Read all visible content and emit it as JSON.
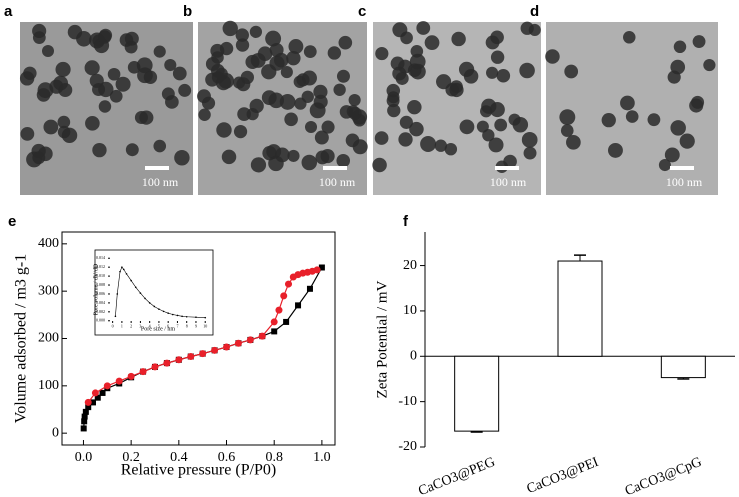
{
  "panels": [
    {
      "label": "a",
      "scale_bar": "100 nm"
    },
    {
      "label": "b",
      "scale_bar": "100 nm"
    },
    {
      "label": "c",
      "scale_bar": "100 nm"
    },
    {
      "label": "d",
      "scale_bar": "100 nm"
    }
  ],
  "chart_data": [
    {
      "type": "line",
      "panel_label": "e",
      "x_label": "Relative pressure (P/P0)",
      "y_label": "Volume adsorbed / m3 g-1",
      "xlim": [
        -0.09,
        1.055
      ],
      "ylim": [
        -25,
        425
      ],
      "xticks": [
        {
          "value": 0,
          "label": "0.0"
        },
        0.2,
        0.4,
        0.6,
        0.8,
        {
          "value": 1,
          "label": "1.0"
        }
      ],
      "yticks": [
        0,
        100,
        200,
        300,
        400
      ],
      "series": [
        {
          "color": "#000000",
          "marker": "square",
          "x": [
            0.001,
            0.003,
            0.005,
            0.01,
            0.02,
            0.04,
            0.06,
            0.08,
            0.1,
            0.15,
            0.2,
            0.25,
            0.3,
            0.35,
            0.4,
            0.45,
            0.5,
            0.55,
            0.6,
            0.65,
            0.7,
            0.75,
            0.8,
            0.85,
            0.9,
            0.95,
            1.0
          ],
          "values": [
            10,
            25,
            35,
            45,
            55,
            65,
            75,
            85,
            95,
            105,
            118,
            130,
            140,
            148,
            155,
            162,
            168,
            175,
            182,
            190,
            197,
            205,
            215,
            235,
            270,
            305,
            350
          ]
        },
        {
          "color": "#e8202a",
          "marker": "circle",
          "x": [
            0.02,
            0.05,
            0.1,
            0.15,
            0.2,
            0.25,
            0.3,
            0.35,
            0.4,
            0.45,
            0.5,
            0.55,
            0.6,
            0.65,
            0.7,
            0.75,
            0.8,
            0.82,
            0.84,
            0.86,
            0.88,
            0.9,
            0.92,
            0.94,
            0.96,
            0.98
          ],
          "values": [
            65,
            85,
            100,
            110,
            120,
            130,
            140,
            148,
            155,
            162,
            168,
            175,
            182,
            190,
            197,
            205,
            235,
            260,
            290,
            315,
            330,
            335,
            338,
            340,
            342,
            345
          ]
        }
      ]
    },
    {
      "type": "line",
      "x_label": "Pore size / nm",
      "y_label": "Pore volume / dV/dD",
      "xlim": [
        -0.5,
        10.3
      ],
      "ylim": [
        -0.0005,
        0.0145
      ],
      "xticks": [
        0,
        1,
        2,
        3,
        4,
        5,
        6,
        7,
        8,
        9,
        10
      ],
      "yticks": [
        {
          "value": 0,
          "label": "0.000"
        },
        0.002,
        0.004,
        0.006,
        0.008,
        {
          "value": 0.01,
          "label": "0.010"
        },
        0.012,
        0.014
      ],
      "series": [
        {
          "color": "#000000",
          "marker": "dot",
          "x": [
            0.3,
            0.5,
            0.8,
            1,
            1.2,
            1.5,
            2,
            2.5,
            3,
            3.5,
            4,
            4.5,
            5,
            5.5,
            6,
            6.5,
            7,
            7.5,
            8,
            9,
            10
          ],
          "values": [
            0.001,
            0.006,
            0.011,
            0.012,
            0.0115,
            0.0105,
            0.009,
            0.0075,
            0.0062,
            0.005,
            0.004,
            0.0032,
            0.0026,
            0.0021,
            0.0017,
            0.0014,
            0.0012,
            0.001,
            0.0009,
            0.0008,
            0.0007
          ]
        }
      ]
    },
    {
      "type": "bar",
      "panel_label": "f",
      "y_label": "Zeta Potential / mV",
      "categories": [
        "CaCO3@PEG",
        "CaCO3@PEI",
        "CaCO3@CpG"
      ],
      "values": [
        -16.5,
        21,
        -4.7
      ],
      "errors": [
        0.2,
        1.3,
        0.3
      ],
      "ylim": [
        -20,
        27.4
      ],
      "yticks": [
        -20,
        -10,
        0,
        10,
        20
      ],
      "color": "#ffffff"
    }
  ]
}
